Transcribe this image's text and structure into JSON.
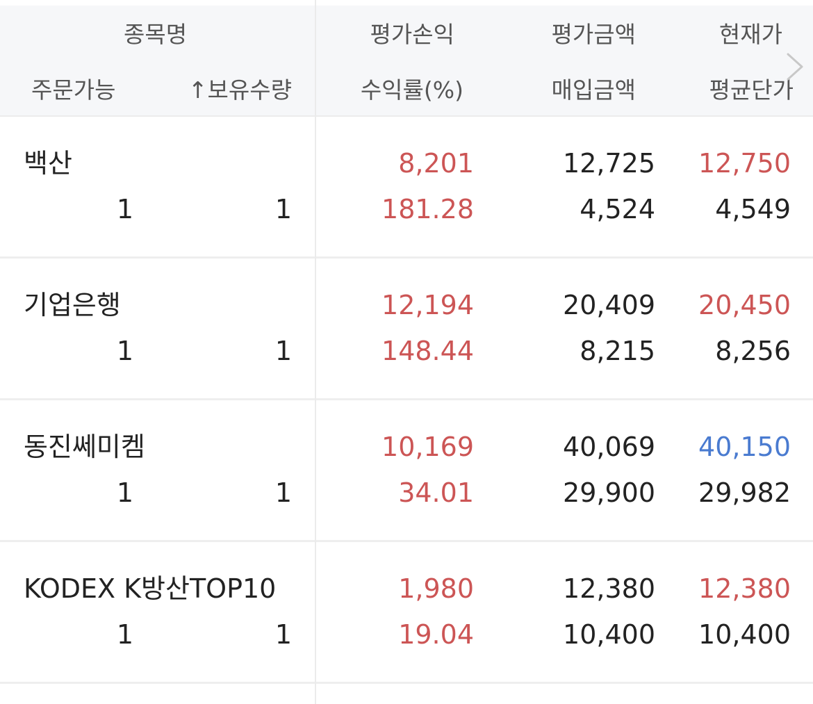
{
  "header": {
    "name": "종목명",
    "order_available": "주문가능",
    "holding_qty": "↑보유수량",
    "eval_pl": "평가손익",
    "return_rate": "수익률(%)",
    "eval_amount": "평가금액",
    "purchase_amount": "매입금액",
    "current_price": "현재가",
    "avg_price": "평균단가"
  },
  "colors": {
    "up": "#cc5555",
    "down": "#4a7bd0",
    "text": "#222222",
    "header_bg": "#f6f7f9"
  },
  "icons": {
    "scroll_right": "chevron-right-icon"
  },
  "rows": [
    {
      "name": "백산",
      "order_available": "1",
      "holding_qty": "1",
      "eval_pl": "8,201",
      "return_rate": "181.28",
      "eval_amount": "12,725",
      "purchase_amount": "4,524",
      "current_price": "12,750",
      "current_price_dir": "up",
      "avg_price": "4,549"
    },
    {
      "name": "기업은행",
      "order_available": "1",
      "holding_qty": "1",
      "eval_pl": "12,194",
      "return_rate": "148.44",
      "eval_amount": "20,409",
      "purchase_amount": "8,215",
      "current_price": "20,450",
      "current_price_dir": "up",
      "avg_price": "8,256"
    },
    {
      "name": "동진쎄미켐",
      "order_available": "1",
      "holding_qty": "1",
      "eval_pl": "10,169",
      "return_rate": "34.01",
      "eval_amount": "40,069",
      "purchase_amount": "29,900",
      "current_price": "40,150",
      "current_price_dir": "down",
      "avg_price": "29,982"
    },
    {
      "name": "KODEX K방산TOP10",
      "order_available": "1",
      "holding_qty": "1",
      "eval_pl": "1,980",
      "return_rate": "19.04",
      "eval_amount": "12,380",
      "purchase_amount": "10,400",
      "current_price": "12,380",
      "current_price_dir": "up",
      "avg_price": "10,400"
    }
  ]
}
